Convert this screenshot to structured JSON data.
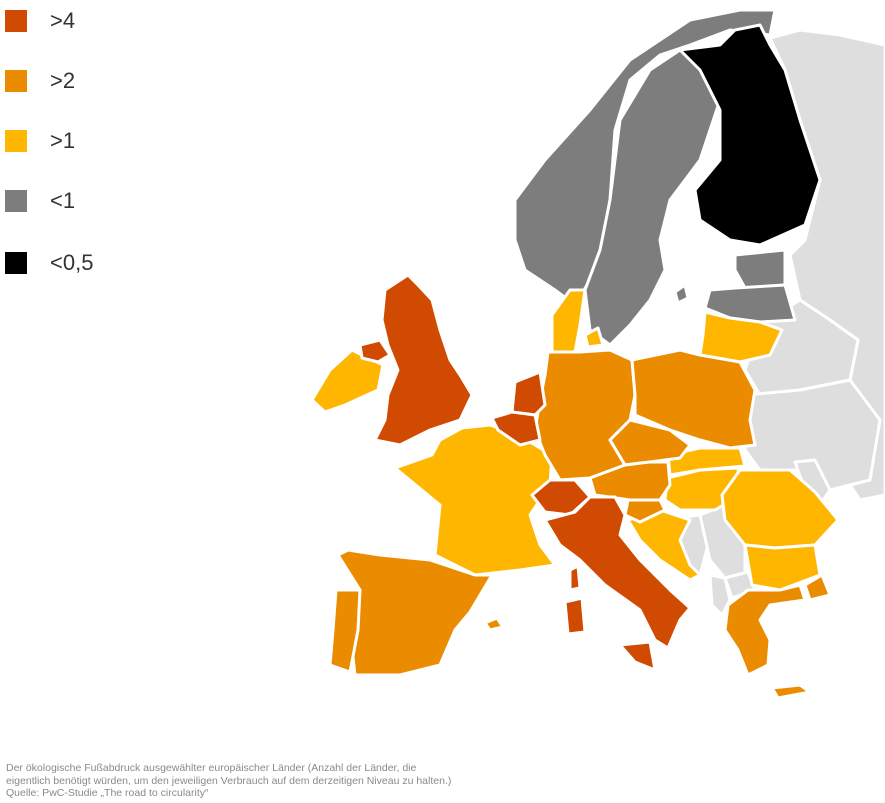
{
  "colors": {
    "gt4": "#d04a02",
    "gt2": "#eb8c00",
    "gt1": "#ffb600",
    "lt1": "#7d7d7d",
    "lt05": "#000000",
    "nodata": "#dedede"
  },
  "legend": [
    {
      "label": ">4",
      "color": "#d04a02"
    },
    {
      "label": ">2",
      "color": "#eb8c00"
    },
    {
      "label": ">1",
      "color": "#ffb600"
    },
    {
      "label": "<1",
      "color": "#7d7d7d"
    },
    {
      "label": "<0,5",
      "color": "#000000"
    }
  ],
  "countries": [
    {
      "id": "russia",
      "category": "nodata"
    },
    {
      "id": "belarus",
      "category": "nodata"
    },
    {
      "id": "ukraine",
      "category": "nodata"
    },
    {
      "id": "moldova",
      "category": "nodata"
    },
    {
      "id": "balkans-west",
      "category": "nodata"
    },
    {
      "id": "serbia",
      "category": "nodata"
    },
    {
      "id": "albania",
      "category": "nodata"
    },
    {
      "id": "macedonia",
      "category": "nodata"
    },
    {
      "id": "norway",
      "category": "lt1"
    },
    {
      "id": "sweden",
      "category": "lt1"
    },
    {
      "id": "estonia",
      "category": "lt1"
    },
    {
      "id": "latvia",
      "category": "lt1"
    },
    {
      "id": "gotland",
      "category": "lt1"
    },
    {
      "id": "finland",
      "category": "lt05"
    },
    {
      "id": "lithuania",
      "category": "gt1"
    },
    {
      "id": "denmark",
      "category": "gt1"
    },
    {
      "id": "ireland",
      "category": "gt1"
    },
    {
      "id": "france",
      "category": "gt1"
    },
    {
      "id": "hungary",
      "category": "gt1"
    },
    {
      "id": "slovakia",
      "category": "gt1"
    },
    {
      "id": "romania",
      "category": "gt1"
    },
    {
      "id": "bulgaria",
      "category": "gt1"
    },
    {
      "id": "croatia",
      "category": "gt1"
    },
    {
      "id": "germany",
      "category": "gt2"
    },
    {
      "id": "poland",
      "category": "gt2"
    },
    {
      "id": "czechia",
      "category": "gt2"
    },
    {
      "id": "austria",
      "category": "gt2"
    },
    {
      "id": "slovenia",
      "category": "gt2"
    },
    {
      "id": "spain",
      "category": "gt2"
    },
    {
      "id": "portugal",
      "category": "gt2"
    },
    {
      "id": "greece",
      "category": "gt2"
    },
    {
      "id": "mallorca",
      "category": "gt2"
    },
    {
      "id": "crete",
      "category": "gt2"
    },
    {
      "id": "united-kingdom",
      "category": "gt4"
    },
    {
      "id": "northern-ireland",
      "category": "gt4"
    },
    {
      "id": "netherlands",
      "category": "gt4"
    },
    {
      "id": "belgium",
      "category": "gt4"
    },
    {
      "id": "switzerland",
      "category": "gt4"
    },
    {
      "id": "italy",
      "category": "gt4"
    },
    {
      "id": "sardinia",
      "category": "gt4"
    },
    {
      "id": "corsica",
      "category": "gt4"
    },
    {
      "id": "sicily",
      "category": "gt4"
    }
  ],
  "caption": {
    "line1": "Der ökologische Fußabdruck ausgewählter europäischer Länder (Anzahl der Länder, die",
    "line2": "eigentlich benötigt würden, um den jeweiligen Verbrauch auf dem derzeitigen Niveau zu halten.)",
    "line3": "Quelle: PwC-Studie „The road to circularity“"
  }
}
